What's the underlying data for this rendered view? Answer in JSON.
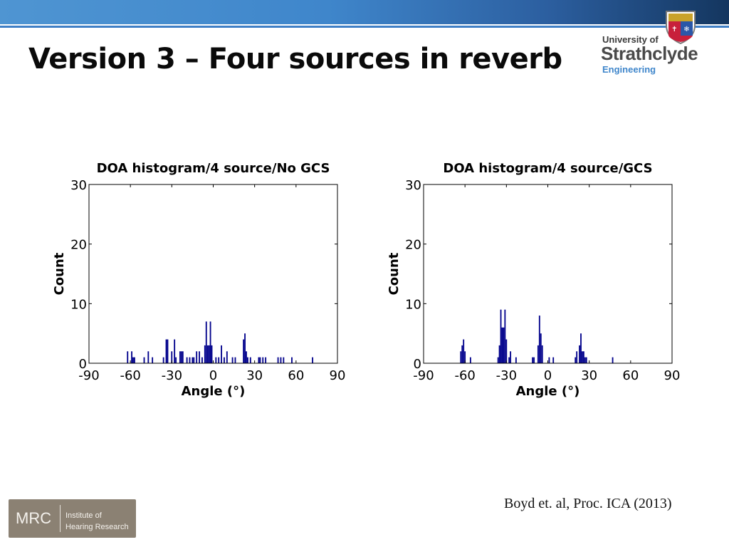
{
  "slide": {
    "title": "Version 3 – Four sources in reverb",
    "citation": "Boyd et. al, Proc. ICA (2013)"
  },
  "logo": {
    "line1": "University of",
    "line2": "Strathclyde",
    "line3": "Engineering"
  },
  "mrc_badge": {
    "mark": "MRC",
    "line1": "Institute of",
    "line2": "Hearing Research"
  },
  "colors": {
    "bar": "#00008b",
    "accent": "#3f86cb"
  },
  "chart_data": [
    {
      "type": "bar",
      "title": "DOA histogram/4 source/No GCS",
      "xlabel": "Angle (°)",
      "ylabel": "Count",
      "xlim": [
        -90,
        90
      ],
      "ylim": [
        0,
        30
      ],
      "xticks": [
        -90,
        -60,
        -30,
        0,
        30,
        60,
        90
      ],
      "yticks": [
        0,
        10,
        20,
        30
      ],
      "grid": false,
      "bin_width": 1,
      "bins": [
        {
          "x": -62,
          "count": 2
        },
        {
          "x": -59,
          "count": 2
        },
        {
          "x": -58,
          "count": 1
        },
        {
          "x": -57,
          "count": 1
        },
        {
          "x": -50,
          "count": 1
        },
        {
          "x": -47,
          "count": 2
        },
        {
          "x": -44,
          "count": 1
        },
        {
          "x": -36,
          "count": 1
        },
        {
          "x": -34,
          "count": 4
        },
        {
          "x": -33,
          "count": 4
        },
        {
          "x": -30,
          "count": 2
        },
        {
          "x": -28,
          "count": 4
        },
        {
          "x": -27,
          "count": 1
        },
        {
          "x": -24,
          "count": 2
        },
        {
          "x": -23,
          "count": 2
        },
        {
          "x": -22,
          "count": 2
        },
        {
          "x": -19,
          "count": 1
        },
        {
          "x": -17,
          "count": 1
        },
        {
          "x": -15,
          "count": 1
        },
        {
          "x": -14,
          "count": 1
        },
        {
          "x": -12,
          "count": 2
        },
        {
          "x": -10,
          "count": 2
        },
        {
          "x": -8,
          "count": 1
        },
        {
          "x": -6,
          "count": 3
        },
        {
          "x": -5,
          "count": 7
        },
        {
          "x": -4,
          "count": 3
        },
        {
          "x": -3,
          "count": 3
        },
        {
          "x": -2,
          "count": 7
        },
        {
          "x": -1,
          "count": 3
        },
        {
          "x": 2,
          "count": 1
        },
        {
          "x": 4,
          "count": 1
        },
        {
          "x": 6,
          "count": 3
        },
        {
          "x": 8,
          "count": 1
        },
        {
          "x": 10,
          "count": 2
        },
        {
          "x": 14,
          "count": 1
        },
        {
          "x": 16,
          "count": 1
        },
        {
          "x": 22,
          "count": 4
        },
        {
          "x": 23,
          "count": 5
        },
        {
          "x": 24,
          "count": 2
        },
        {
          "x": 25,
          "count": 1
        },
        {
          "x": 27,
          "count": 1
        },
        {
          "x": 33,
          "count": 1
        },
        {
          "x": 34,
          "count": 1
        },
        {
          "x": 36,
          "count": 1
        },
        {
          "x": 38,
          "count": 1
        },
        {
          "x": 47,
          "count": 1
        },
        {
          "x": 49,
          "count": 1
        },
        {
          "x": 51,
          "count": 1
        },
        {
          "x": 57,
          "count": 1
        },
        {
          "x": 72,
          "count": 1
        }
      ]
    },
    {
      "type": "bar",
      "title": "DOA histogram/4 source/GCS",
      "xlabel": "Angle (°)",
      "ylabel": "Count",
      "xlim": [
        -90,
        90
      ],
      "ylim": [
        0,
        30
      ],
      "xticks": [
        -90,
        -60,
        -30,
        0,
        30,
        60,
        90
      ],
      "yticks": [
        0,
        10,
        20,
        30
      ],
      "grid": false,
      "bin_width": 1,
      "bins": [
        {
          "x": -63,
          "count": 2
        },
        {
          "x": -62,
          "count": 3
        },
        {
          "x": -61,
          "count": 4
        },
        {
          "x": -60,
          "count": 2
        },
        {
          "x": -56,
          "count": 1
        },
        {
          "x": -36,
          "count": 1
        },
        {
          "x": -35,
          "count": 3
        },
        {
          "x": -34,
          "count": 9
        },
        {
          "x": -33,
          "count": 6
        },
        {
          "x": -32,
          "count": 6
        },
        {
          "x": -31,
          "count": 9
        },
        {
          "x": -30,
          "count": 4
        },
        {
          "x": -28,
          "count": 1
        },
        {
          "x": -27,
          "count": 2
        },
        {
          "x": -23,
          "count": 1
        },
        {
          "x": -11,
          "count": 1
        },
        {
          "x": -10,
          "count": 1
        },
        {
          "x": -7,
          "count": 3
        },
        {
          "x": -6,
          "count": 8
        },
        {
          "x": -5,
          "count": 5
        },
        {
          "x": -4,
          "count": 3
        },
        {
          "x": 1,
          "count": 1
        },
        {
          "x": 4,
          "count": 1
        },
        {
          "x": 20,
          "count": 1
        },
        {
          "x": 21,
          "count": 2
        },
        {
          "x": 23,
          "count": 3
        },
        {
          "x": 24,
          "count": 5
        },
        {
          "x": 25,
          "count": 2
        },
        {
          "x": 26,
          "count": 2
        },
        {
          "x": 27,
          "count": 1
        },
        {
          "x": 28,
          "count": 1
        },
        {
          "x": 47,
          "count": 1
        }
      ]
    }
  ]
}
